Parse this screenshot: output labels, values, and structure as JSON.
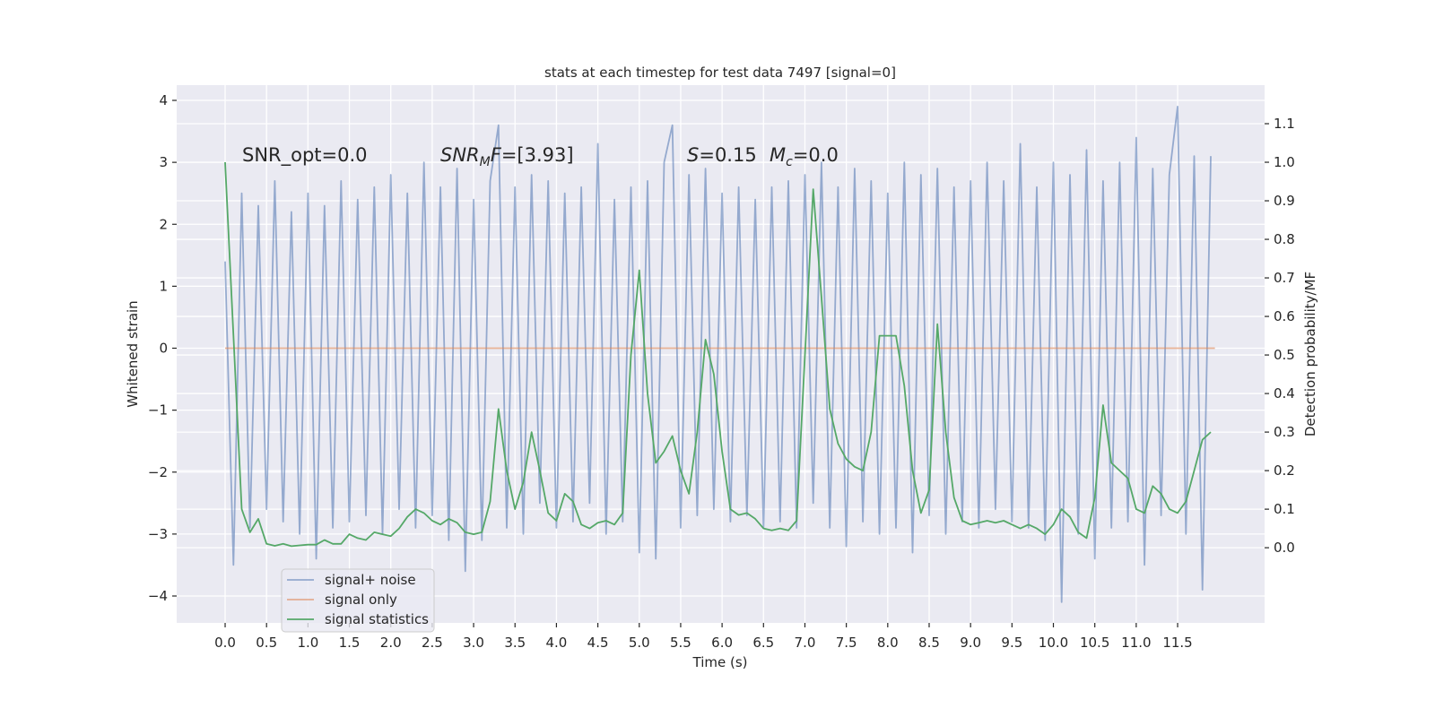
{
  "chart_data": {
    "type": "line",
    "title": "stats at each timestep for test data 7497 [signal=0]",
    "x_label": "Time (s)",
    "y_label": "Whitened strain",
    "y2_label": "Detection probability/MF",
    "annotations": [
      [
        {
          "text": "SNR_opt=0.0",
          "style": "normal"
        }
      ],
      [
        {
          "text": "SNR",
          "style": "italic"
        },
        {
          "text": "M",
          "style": "italic-sub"
        },
        {
          "text": "F",
          "style": "italic"
        },
        {
          "text": "=[3.93]",
          "style": "normal"
        }
      ],
      [
        {
          "text": "S",
          "style": "italic"
        },
        {
          "text": "=0.15",
          "style": "normal"
        }
      ],
      [
        {
          "text": "M",
          "style": "italic"
        },
        {
          "text": "c",
          "style": "italic-sub"
        },
        {
          "text": "=0.0",
          "style": "normal"
        }
      ]
    ],
    "grid": true,
    "legend": "lower left",
    "xlim": [
      -0.585,
      12.55
    ],
    "ylim": [
      -4.434,
      4.246
    ],
    "y2lim": [
      -0.195,
      1.2
    ],
    "xticks": [
      {
        "value": 0,
        "label": "0.0"
      },
      0.5,
      {
        "value": 1,
        "label": "1.0"
      },
      1.5,
      {
        "value": 2,
        "label": "2.0"
      },
      2.5,
      {
        "value": 3,
        "label": "3.0"
      },
      3.5,
      {
        "value": 4,
        "label": "4.0"
      },
      4.5,
      {
        "value": 5,
        "label": "5.0"
      },
      5.5,
      {
        "value": 6,
        "label": "6.0"
      },
      6.5,
      {
        "value": 7,
        "label": "7.0"
      },
      7.5,
      {
        "value": 8,
        "label": "8.0"
      },
      8.5,
      {
        "value": 9,
        "label": "9.0"
      },
      9.5,
      {
        "value": 10,
        "label": "10.0"
      },
      10.5,
      {
        "value": 11,
        "label": "11.0"
      },
      11.5
    ],
    "yticks": [
      {
        "value": -4,
        "label": "−4"
      },
      {
        "value": -3,
        "label": "−3"
      },
      {
        "value": -2,
        "label": "−2"
      },
      {
        "value": -1,
        "label": "−1"
      },
      0,
      1,
      2,
      3,
      4
    ],
    "y2ticks": [
      {
        "value": 0,
        "label": "0.0"
      },
      0.1,
      0.2,
      0.3,
      0.4,
      0.5,
      0.6,
      0.7,
      0.8,
      0.9,
      {
        "value": 1,
        "label": "1.0"
      },
      1.1
    ],
    "series": [
      {
        "name": "signal+ noise",
        "color": "#4c72b0",
        "opacity": 0.55,
        "x": [
          0,
          0.1,
          0.2,
          0.3,
          0.4,
          0.5,
          0.6,
          0.7,
          0.8,
          0.9,
          1,
          1.1,
          1.2,
          1.3,
          1.4,
          1.5,
          1.6,
          1.7,
          1.8,
          1.9,
          2,
          2.1,
          2.2,
          2.3,
          2.4,
          2.5,
          2.6,
          2.7,
          2.8,
          2.9,
          3,
          3.1,
          3.2,
          3.3,
          3.4,
          3.5,
          3.6,
          3.7,
          3.8,
          3.9,
          4,
          4.1,
          4.2,
          4.3,
          4.4,
          4.5,
          4.6,
          4.7,
          4.8,
          4.9,
          5,
          5.1,
          5.2,
          5.3,
          5.4,
          5.5,
          5.6,
          5.7,
          5.8,
          5.9,
          6,
          6.1,
          6.2,
          6.3,
          6.4,
          6.5,
          6.6,
          6.7,
          6.8,
          6.9,
          7,
          7.1,
          7.2,
          7.3,
          7.4,
          7.5,
          7.6,
          7.7,
          7.8,
          7.9,
          8,
          8.1,
          8.2,
          8.3,
          8.4,
          8.5,
          8.6,
          8.7,
          8.8,
          8.9,
          9,
          9.1,
          9.2,
          9.3,
          9.4,
          9.5,
          9.6,
          9.7,
          9.8,
          9.9,
          10,
          10.1,
          10.2,
          10.3,
          10.4,
          10.5,
          10.6,
          10.7,
          10.8,
          10.9,
          11,
          11.1,
          11.2,
          11.3,
          11.4,
          11.5,
          11.6,
          11.7,
          11.8,
          11.9
        ],
        "values": [
          1.4,
          -3.5,
          2.5,
          -2.9,
          2.3,
          -2.6,
          2.7,
          -2.8,
          2.2,
          -3.0,
          2.5,
          -3.4,
          2.3,
          -2.9,
          2.7,
          -2.8,
          2.4,
          -2.7,
          2.6,
          -3.0,
          2.8,
          -2.6,
          2.5,
          -2.9,
          3.0,
          -2.7,
          2.6,
          -3.1,
          2.9,
          -3.6,
          2.4,
          -3.1,
          2.7,
          3.6,
          -2.9,
          2.6,
          -3.0,
          2.8,
          -2.5,
          2.7,
          -2.9,
          2.5,
          -2.8,
          2.6,
          -2.5,
          3.3,
          -3.0,
          2.4,
          -2.8,
          2.6,
          -3.3,
          2.7,
          -3.4,
          3.0,
          3.6,
          -2.9,
          2.8,
          -2.7,
          2.9,
          -2.6,
          2.5,
          -2.8,
          2.6,
          -2.7,
          2.4,
          -2.9,
          2.6,
          -2.8,
          2.7,
          -2.9,
          2.8,
          -2.5,
          3.0,
          -2.9,
          2.6,
          -3.2,
          2.9,
          -2.8,
          2.7,
          -3.0,
          2.5,
          -2.9,
          3.0,
          -3.3,
          2.8,
          -2.7,
          2.9,
          -3.0,
          2.6,
          -2.8,
          2.7,
          -2.9,
          3.0,
          -2.6,
          2.7,
          -2.8,
          3.3,
          -2.9,
          2.6,
          -3.1,
          3.0,
          -4.1,
          2.8,
          -3.0,
          3.2,
          -3.4,
          2.7,
          -2.9,
          3.0,
          -2.8,
          3.4,
          -3.5,
          2.9,
          -2.7,
          2.8,
          3.9,
          -3.0,
          3.1,
          -3.9,
          3.1
        ]
      },
      {
        "name": "signal only",
        "color": "#dd8452",
        "opacity": 0.6,
        "x": [
          0,
          11.95
        ],
        "values": [
          0,
          0
        ]
      },
      {
        "name": "signal statistics",
        "color": "#55a868",
        "opacity": 1,
        "axis": "y2",
        "x": [
          0,
          0.1,
          0.2,
          0.3,
          0.4,
          0.5,
          0.6,
          0.7,
          0.8,
          0.9,
          1,
          1.1,
          1.2,
          1.3,
          1.4,
          1.5,
          1.6,
          1.7,
          1.8,
          1.9,
          2,
          2.1,
          2.2,
          2.3,
          2.4,
          2.5,
          2.6,
          2.7,
          2.8,
          2.9,
          3,
          3.1,
          3.2,
          3.3,
          3.4,
          3.5,
          3.6,
          3.7,
          3.8,
          3.9,
          4,
          4.1,
          4.2,
          4.3,
          4.4,
          4.5,
          4.6,
          4.7,
          4.8,
          4.9,
          5,
          5.1,
          5.2,
          5.3,
          5.4,
          5.5,
          5.6,
          5.7,
          5.8,
          5.9,
          6,
          6.1,
          6.2,
          6.3,
          6.4,
          6.5,
          6.6,
          6.7,
          6.8,
          6.9,
          7,
          7.1,
          7.2,
          7.3,
          7.4,
          7.5,
          7.6,
          7.7,
          7.8,
          7.9,
          8,
          8.1,
          8.2,
          8.3,
          8.4,
          8.5,
          8.6,
          8.7,
          8.8,
          8.9,
          9,
          9.1,
          9.2,
          9.3,
          9.4,
          9.5,
          9.6,
          9.7,
          9.8,
          9.9,
          10,
          10.1,
          10.2,
          10.3,
          10.4,
          10.5,
          10.6,
          10.7,
          10.8,
          10.9,
          11,
          11.1,
          11.2,
          11.3,
          11.4,
          11.5,
          11.6,
          11.7,
          11.8,
          11.9
        ],
        "values": [
          1.0,
          0.55,
          0.1,
          0.04,
          0.075,
          0.01,
          0.005,
          0.01,
          0.004,
          0.006,
          0.008,
          0.008,
          0.02,
          0.01,
          0.01,
          0.035,
          0.025,
          0.02,
          0.04,
          0.035,
          0.03,
          0.05,
          0.08,
          0.1,
          0.09,
          0.07,
          0.06,
          0.075,
          0.065,
          0.04,
          0.035,
          0.04,
          0.12,
          0.36,
          0.2,
          0.1,
          0.17,
          0.3,
          0.2,
          0.09,
          0.07,
          0.14,
          0.12,
          0.06,
          0.05,
          0.065,
          0.07,
          0.06,
          0.09,
          0.5,
          0.72,
          0.4,
          0.22,
          0.25,
          0.29,
          0.2,
          0.14,
          0.3,
          0.54,
          0.45,
          0.25,
          0.1,
          0.085,
          0.09,
          0.075,
          0.05,
          0.045,
          0.05,
          0.045,
          0.07,
          0.5,
          0.93,
          0.65,
          0.36,
          0.27,
          0.23,
          0.21,
          0.2,
          0.3,
          0.55,
          0.55,
          0.55,
          0.42,
          0.2,
          0.09,
          0.15,
          0.58,
          0.3,
          0.13,
          0.07,
          0.06,
          0.065,
          0.07,
          0.065,
          0.07,
          0.06,
          0.05,
          0.06,
          0.05,
          0.035,
          0.06,
          0.1,
          0.08,
          0.04,
          0.025,
          0.13,
          0.37,
          0.22,
          0.2,
          0.18,
          0.1,
          0.09,
          0.16,
          0.14,
          0.1,
          0.09,
          0.12,
          0.2,
          0.28,
          0.3
        ]
      }
    ]
  }
}
